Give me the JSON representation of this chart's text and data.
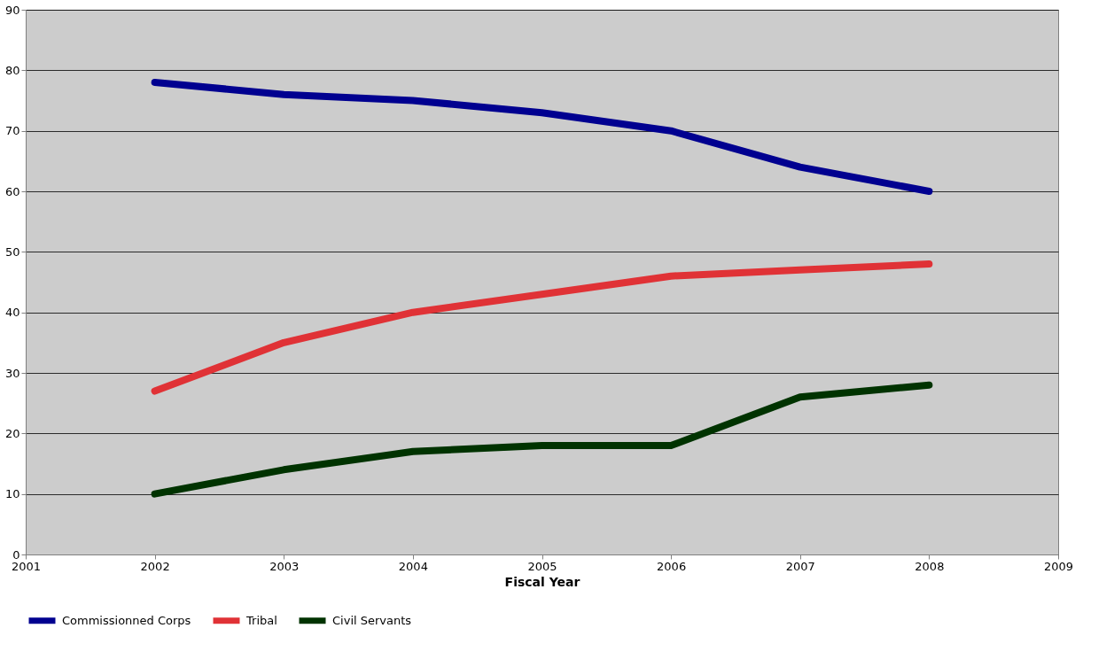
{
  "chart_data": {
    "type": "line",
    "xlabel": "Fiscal Year",
    "x": [
      2002,
      2003,
      2004,
      2005,
      2006,
      2007,
      2008
    ],
    "xlim": [
      2001,
      2009
    ],
    "xticks": [
      2001,
      2002,
      2003,
      2004,
      2005,
      2006,
      2007,
      2008,
      2009
    ],
    "ylim": [
      0,
      90
    ],
    "yticks": [
      0,
      10,
      20,
      30,
      40,
      50,
      60,
      70,
      80,
      90
    ],
    "grid": "y",
    "legend": "bottom",
    "line_style": "solid",
    "series": [
      {
        "name": "Commissionned Corps",
        "color": "#000090",
        "values": [
          78,
          76,
          75,
          73,
          70,
          64,
          60
        ]
      },
      {
        "name": "Tribal",
        "color": "#e03236",
        "values": [
          27,
          35,
          40,
          43,
          46,
          47,
          48
        ]
      },
      {
        "name": "Civil Servants",
        "color": "#003300",
        "values": [
          10,
          14,
          17,
          18,
          18,
          26,
          28
        ]
      }
    ]
  }
}
